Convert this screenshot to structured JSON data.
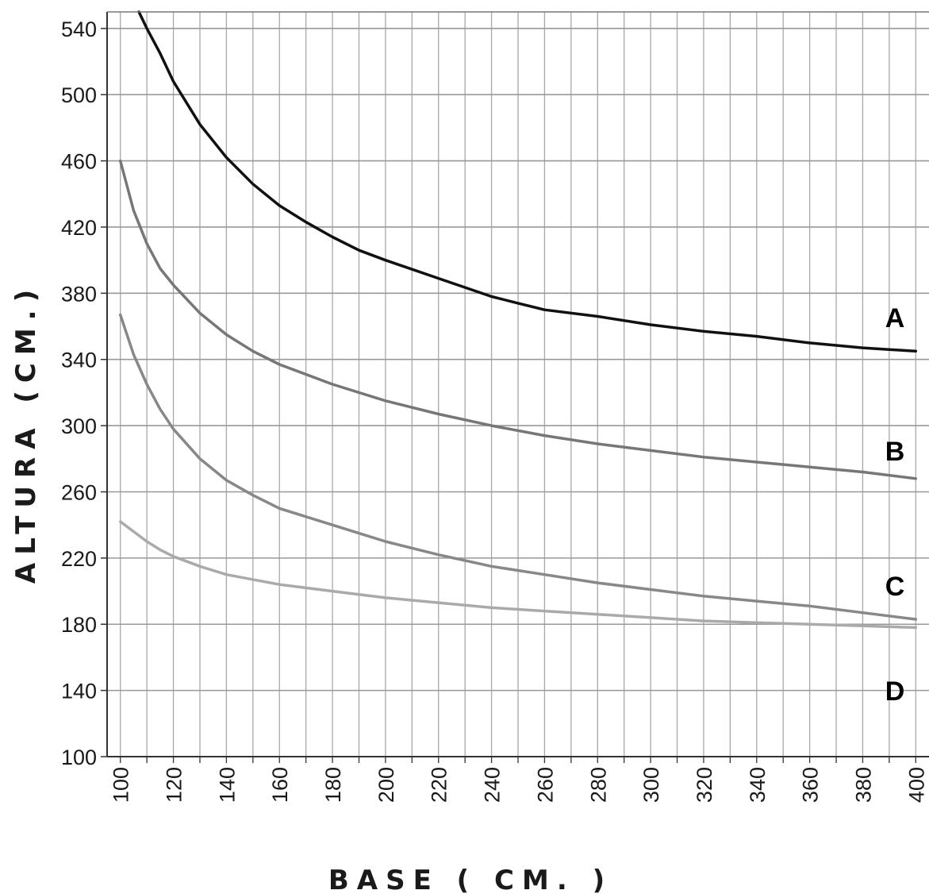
{
  "chart_data": {
    "type": "line",
    "title": "",
    "xlabel": "BASE ( CM. )",
    "ylabel": "ALTURA (CM.)",
    "xlim": [
      95,
      405
    ],
    "ylim": [
      100,
      550
    ],
    "xticks": [
      100,
      120,
      140,
      160,
      180,
      200,
      220,
      240,
      260,
      280,
      300,
      320,
      340,
      360,
      380,
      400
    ],
    "yticks": [
      100,
      140,
      180,
      220,
      260,
      300,
      340,
      380,
      420,
      460,
      500,
      540
    ],
    "x_minor_step": 10,
    "grid": true,
    "series": [
      {
        "name": "A",
        "color": "#111111",
        "x": [
          107,
          110,
          115,
          120,
          130,
          140,
          150,
          160,
          170,
          180,
          190,
          200,
          220,
          240,
          250,
          260,
          280,
          300,
          320,
          340,
          360,
          380,
          390,
          400
        ],
        "y": [
          550,
          540,
          525,
          508,
          482,
          462,
          446,
          433,
          423,
          414,
          406,
          400,
          389,
          378,
          374,
          370,
          366,
          361,
          357,
          354,
          350,
          347,
          346,
          345
        ]
      },
      {
        "name": "B",
        "color": "#777777",
        "x": [
          100,
          105,
          110,
          115,
          120,
          130,
          140,
          150,
          160,
          180,
          200,
          220,
          240,
          260,
          280,
          300,
          320,
          340,
          360,
          380,
          400
        ],
        "y": [
          460,
          430,
          410,
          395,
          385,
          368,
          355,
          345,
          337,
          325,
          315,
          307,
          300,
          294,
          289,
          285,
          281,
          278,
          275,
          272,
          268
        ]
      },
      {
        "name": "C",
        "color": "#888888",
        "x": [
          100,
          105,
          110,
          115,
          120,
          130,
          140,
          150,
          160,
          180,
          200,
          220,
          240,
          260,
          280,
          300,
          320,
          340,
          360,
          380,
          400
        ],
        "y": [
          367,
          343,
          325,
          310,
          298,
          280,
          267,
          258,
          250,
          240,
          230,
          222,
          215,
          210,
          205,
          201,
          197,
          194,
          191,
          187,
          183
        ]
      },
      {
        "name": "D",
        "color": "#aaaaaa",
        "x": [
          100,
          105,
          110,
          115,
          120,
          130,
          140,
          160,
          180,
          200,
          220,
          240,
          260,
          280,
          300,
          320,
          340,
          360,
          380,
          400
        ],
        "y": [
          242,
          236,
          230,
          225,
          221,
          215,
          210,
          204,
          200,
          196,
          193,
          190,
          188,
          186,
          184,
          182,
          181,
          180,
          179,
          178
        ]
      }
    ]
  }
}
